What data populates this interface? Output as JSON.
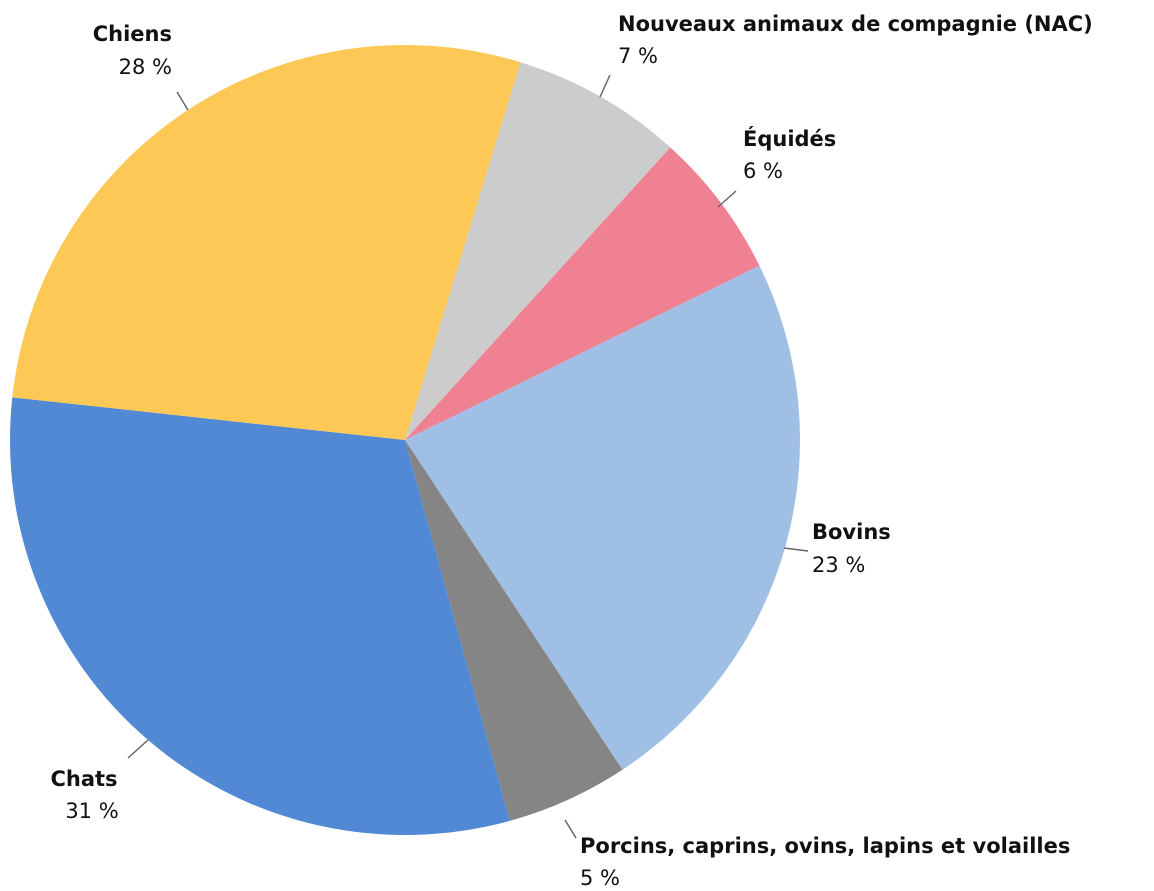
{
  "chart_data": {
    "type": "pie",
    "categories": [
      "Nouveaux animaux de compagnie (NAC)",
      "Équidés",
      "Bovins",
      "Porcins, caprins, ovins, lapins et volailles",
      "Chats",
      "Chiens"
    ],
    "values": [
      7,
      6,
      23,
      5,
      31,
      28
    ],
    "value_labels": [
      "7 %",
      "6 %",
      "23 %",
      "5 %",
      "31 %",
      "28 %"
    ],
    "colors": [
      "#cccccc",
      "#f08193",
      "#a0bfe5",
      "#858585",
      "#5289d4",
      "#fdc856"
    ]
  }
}
